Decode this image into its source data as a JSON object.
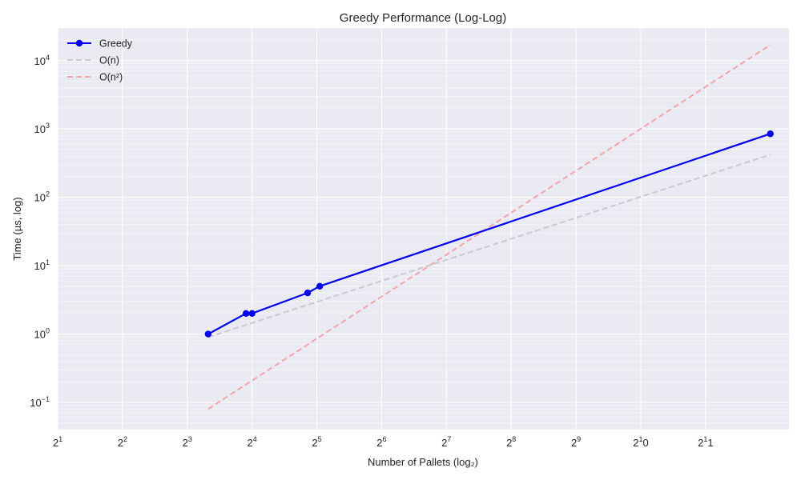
{
  "chart_data": {
    "type": "line",
    "title": "Greedy Performance (Log-Log)",
    "xlabel": "Number of Pallets (log₂)",
    "ylabel": "Time (µs, log)",
    "x_scale": "log2",
    "y_scale": "log10",
    "xlim": [
      2,
      5000
    ],
    "ylim": [
      0.04,
      30000
    ],
    "grid": true,
    "legend_position": "top-left",
    "x_ticks": [
      {
        "value": 2,
        "base": "2",
        "exp": "1"
      },
      {
        "value": 4,
        "base": "2",
        "exp": "2"
      },
      {
        "value": 8,
        "base": "2",
        "exp": "3"
      },
      {
        "value": 16,
        "base": "2",
        "exp": "4"
      },
      {
        "value": 32,
        "base": "2",
        "exp": "5"
      },
      {
        "value": 64,
        "base": "2",
        "exp": "6"
      },
      {
        "value": 128,
        "base": "2",
        "exp": "7"
      },
      {
        "value": 256,
        "base": "2",
        "exp": "8"
      },
      {
        "value": 512,
        "base": "2",
        "exp": "9"
      },
      {
        "value": 1024,
        "base": "2",
        "exp": "1",
        "after": "0"
      },
      {
        "value": 2048,
        "base": "2",
        "exp": "1",
        "after": "1"
      }
    ],
    "y_ticks": [
      {
        "value": 0.1,
        "base": "10",
        "exp": "−1"
      },
      {
        "value": 1,
        "base": "10",
        "exp": "0"
      },
      {
        "value": 10,
        "base": "10",
        "exp": "1"
      },
      {
        "value": 100,
        "base": "10",
        "exp": "2"
      },
      {
        "value": 1000,
        "base": "10",
        "exp": "3"
      },
      {
        "value": 10000,
        "base": "10",
        "exp": "4"
      }
    ],
    "series": [
      {
        "name": "Greedy",
        "color": "#0000ee",
        "style": "solid-markers",
        "x": [
          10,
          15,
          16,
          29,
          33,
          4096
        ],
        "y": [
          1,
          2,
          2,
          4,
          5,
          850
        ]
      },
      {
        "name": "O(n)",
        "color": "#c8c8d0",
        "style": "dashed",
        "x": [
          10,
          4096
        ],
        "y": [
          0.9,
          420
        ]
      },
      {
        "name": "O(n²)",
        "color": "#f4a3a8",
        "style": "dashed",
        "x": [
          10,
          4096
        ],
        "y": [
          0.08,
          17000
        ]
      }
    ]
  }
}
